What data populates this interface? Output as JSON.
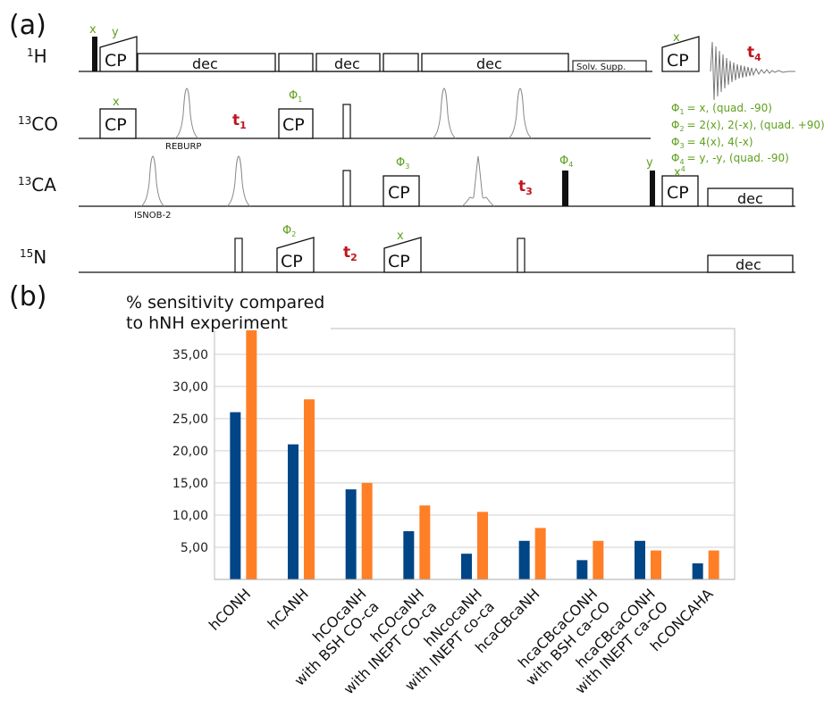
{
  "panel_a": {
    "label": "(a)",
    "channels": {
      "h": {
        "sup": "1",
        "name": "H"
      },
      "co": {
        "sup": "13",
        "name": "CO"
      },
      "ca": {
        "sup": "13",
        "name": "CA"
      },
      "n": {
        "sup": "15",
        "name": "N"
      }
    },
    "labels": {
      "cp": "CP",
      "dec": "dec",
      "solv": "Solv. Supp.",
      "x": "x",
      "y": "y",
      "x4": "x",
      "x4_sup": "4",
      "reburp": "REBURP",
      "isnob": "ISNOB-2",
      "phi": "Φ",
      "phi1_sub": "1",
      "phi2_sub": "2",
      "phi3_sub": "3",
      "phi4_sub": "4",
      "t": "t",
      "t1_sub": "1",
      "t2_sub": "2",
      "t3_sub": "3",
      "t4_sub": "4"
    },
    "phase_legend": [
      {
        "sub": "1",
        "text": "= x, (quad. -90)"
      },
      {
        "sub": "2",
        "text": "= 2(x), 2(-x), (quad. +90)"
      },
      {
        "sub": "3",
        "text": "= 4(x), 4(-x)"
      },
      {
        "sub": "4",
        "text": "= y, -y, (quad. -90)"
      }
    ],
    "colors": {
      "phase": "#5fa01e",
      "t_label": "#c0141e"
    }
  },
  "panel_b": {
    "label": "(b)",
    "title_line1": "% sensitivity compared",
    "title_line2": "to hNH experiment"
  },
  "chart_data": {
    "type": "bar",
    "categories": [
      "hCONH",
      "hCANH",
      "hCOcaNH\nwith BSH CO-ca",
      "hCOcaNH\nwith INEPT CO-ca",
      "hNcocaNH\nwith INEPT co-ca",
      "hcaCBcaNH",
      "hcaCBcaCONH\nwith BSH ca-CO",
      "hcaCBcaCONH\nwith INEPT ca-CO",
      "hCONCAHA"
    ],
    "series": [
      {
        "color": "#004586",
        "values": [
          26,
          21,
          14,
          7.5,
          4,
          6,
          3,
          6,
          2.5
        ]
      },
      {
        "color": "#ff7f27",
        "values": [
          39,
          28,
          15,
          11.5,
          10.5,
          8,
          6,
          4.5,
          4.5
        ]
      }
    ],
    "title": "% sensitivity compared\nto hNH experiment",
    "yticks": [
      "5,00",
      "10,00",
      "15,00",
      "20,00",
      "25,00",
      "30,00",
      "35,00"
    ],
    "ylim": [
      0,
      39
    ],
    "grid": true
  }
}
